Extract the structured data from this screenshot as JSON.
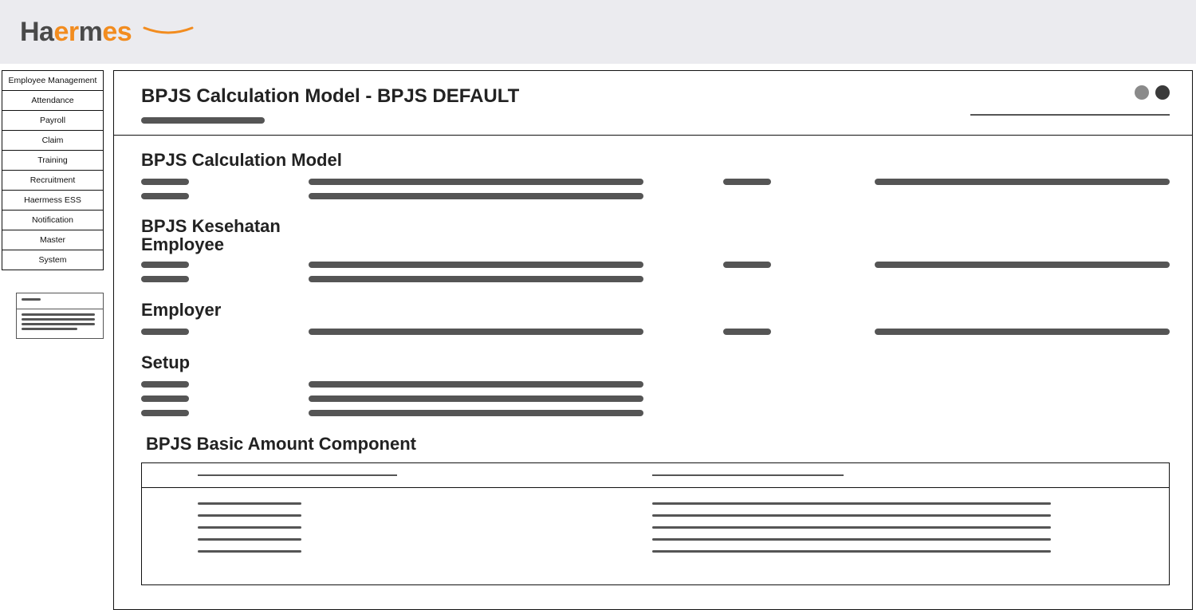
{
  "logo": {
    "parts": [
      "Ha",
      "er",
      "m",
      "es"
    ],
    "colors": [
      "#4a4a4a",
      "#f28c1f",
      "#4a4a4a",
      "#f28c1f"
    ],
    "underline_color": "#f28c1f"
  },
  "sidebar": {
    "items": [
      {
        "label": "Employee Management"
      },
      {
        "label": "Attendance"
      },
      {
        "label": "Payroll"
      },
      {
        "label": "Claim"
      },
      {
        "label": "Training"
      },
      {
        "label": "Recruitment"
      },
      {
        "label": "Haermess ESS"
      },
      {
        "label": "Notification"
      },
      {
        "label": "Master"
      },
      {
        "label": "System"
      }
    ]
  },
  "page": {
    "title": "BPJS Calculation Model - BPJS DEFAULT",
    "header_dots": [
      "#8a8a8a",
      "#3a3a3a"
    ],
    "sections": [
      {
        "title": "BPJS Calculation Model",
        "rows": [
          {
            "a": 60,
            "b": 420,
            "c": 60,
            "d": 370
          },
          {
            "a": 60,
            "b": 420,
            "c": 0,
            "d": 0
          }
        ]
      },
      {
        "title": "BPJS Kesehatan Employee",
        "rows": [
          {
            "a": 60,
            "b": 420,
            "c": 60,
            "d": 370
          },
          {
            "a": 60,
            "b": 420,
            "c": 0,
            "d": 0
          }
        ]
      },
      {
        "title": "Employer",
        "rows": [
          {
            "a": 60,
            "b": 420,
            "c": 60,
            "d": 370
          }
        ]
      },
      {
        "title": "Setup",
        "rows": [
          {
            "a": 60,
            "b": 420,
            "c": 0,
            "d": 0
          },
          {
            "a": 60,
            "b": 420,
            "c": 0,
            "d": 0
          },
          {
            "a": 60,
            "b": 420,
            "c": 0,
            "d": 0
          }
        ]
      }
    ],
    "component_table": {
      "title": "BPJS Basic Amount Component",
      "head_left_width": 250,
      "head_right_width": 240,
      "left_rows": [
        130,
        130,
        130,
        130,
        130
      ],
      "right_rows": [
        500,
        500,
        500,
        500,
        500
      ]
    },
    "colors": {
      "pill": "#555555",
      "border": "#111111",
      "header_bg": "#ebebef"
    }
  }
}
